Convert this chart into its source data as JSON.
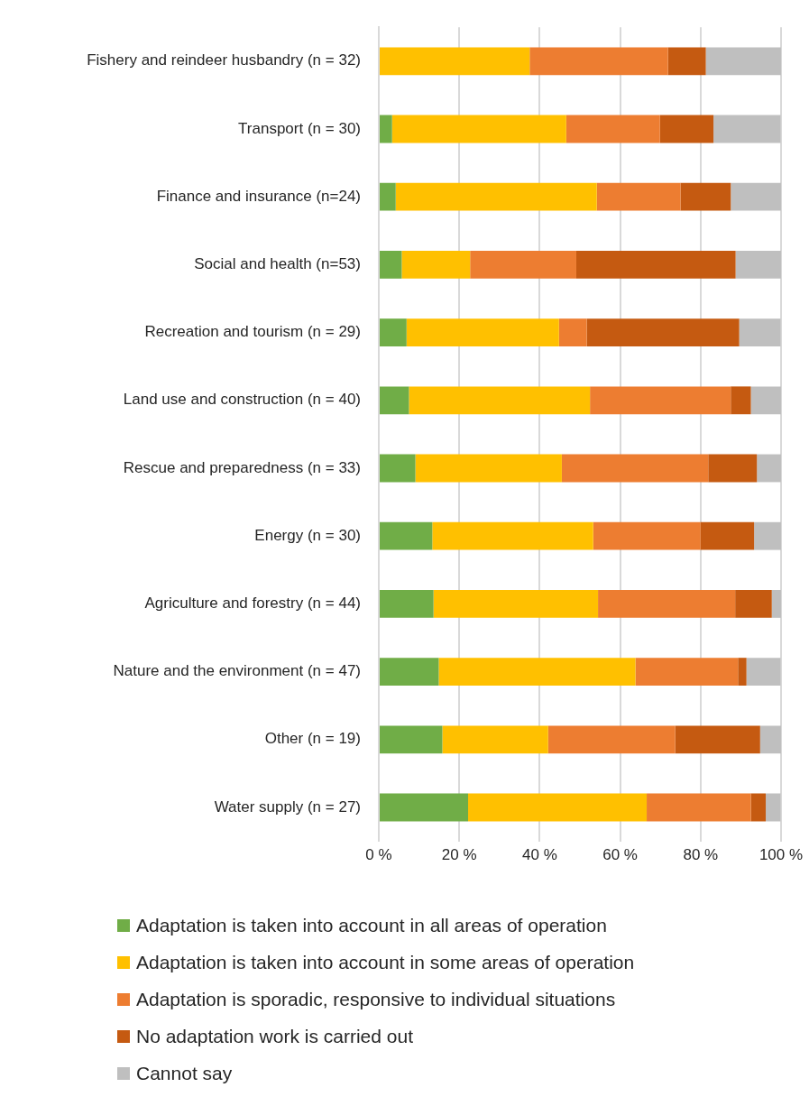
{
  "chart_data": {
    "type": "bar",
    "orientation": "horizontal",
    "stacked": true,
    "categories": [
      "Fishery and reindeer husbandry (n = 32)",
      "Transport (n = 30)",
      "Finance and insurance (n=24)",
      "Social and health (n=53)",
      "Recreation and tourism (n = 29)",
      "Land use and construction (n = 40)",
      "Rescue and preparedness (n = 33)",
      "Energy (n = 30)",
      "Agriculture and forestry (n = 44)",
      "Nature and the environment (n = 47)",
      "Other (n = 19)",
      "Water supply (n = 27)"
    ],
    "series": [
      {
        "name": "Adaptation is taken into account in all areas of operation",
        "color": "#70ad47",
        "values": [
          0,
          3.3,
          4.2,
          5.7,
          6.9,
          7.5,
          9.1,
          13.3,
          13.6,
          14.9,
          15.8,
          22.2
        ]
      },
      {
        "name": "Adaptation is taken into account in some areas of operation",
        "color": "#ffc000",
        "values": [
          37.5,
          43.3,
          50.0,
          17.0,
          37.9,
          45.0,
          36.4,
          40.0,
          40.9,
          48.9,
          26.3,
          44.4
        ]
      },
      {
        "name": "Adaptation is sporadic, responsive to individual situations",
        "color": "#ed7d31",
        "values": [
          34.4,
          23.3,
          20.8,
          26.4,
          6.9,
          35.0,
          36.4,
          26.7,
          34.1,
          25.5,
          31.6,
          25.9
        ]
      },
      {
        "name": "No adaptation work is carried out",
        "color": "#c55a11",
        "values": [
          9.4,
          13.3,
          12.5,
          39.6,
          37.9,
          5.0,
          12.1,
          13.3,
          9.1,
          2.1,
          21.1,
          3.7
        ]
      },
      {
        "name": "Cannot say",
        "color": "#bfbfbf",
        "values": [
          18.8,
          16.7,
          12.5,
          11.3,
          10.3,
          7.5,
          6.1,
          6.7,
          2.3,
          8.5,
          5.3,
          3.7
        ]
      }
    ],
    "xlim": [
      0,
      100
    ],
    "xticks": [
      {
        "value": 0,
        "label": "0 %"
      },
      {
        "value": 20,
        "label": "20 %"
      },
      {
        "value": 40,
        "label": "40 %"
      },
      {
        "value": 60,
        "label": "60 %"
      },
      {
        "value": 80,
        "label": "80 %"
      },
      {
        "value": 100,
        "label": "100 %"
      }
    ],
    "grid": "x",
    "legend": "bottom"
  }
}
